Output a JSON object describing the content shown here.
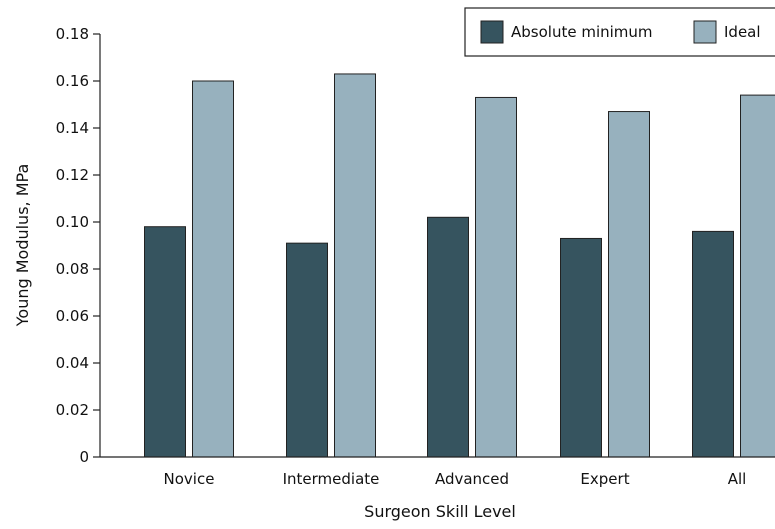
{
  "chart_data": {
    "type": "bar",
    "categories": [
      "Novice",
      "Intermediate",
      "Advanced",
      "Expert",
      "All"
    ],
    "series": [
      {
        "name": "Absolute minimum",
        "color": "#36545f",
        "values": [
          0.098,
          0.091,
          0.102,
          0.093,
          0.096
        ]
      },
      {
        "name": "Ideal",
        "color": "#97b1be",
        "values": [
          0.16,
          0.163,
          0.153,
          0.147,
          0.154
        ]
      }
    ],
    "title": "",
    "xlabel": "Surgeon Skill Level",
    "ylabel": "Young Modulus, MPa",
    "ylim": [
      0,
      0.18
    ],
    "yticks": [
      "0",
      "0.02",
      "0.04",
      "0.06",
      "0.08",
      "0.10",
      "0.12",
      "0.14",
      "0.16",
      "0.18"
    ],
    "grid": false,
    "legend_position": "top-right"
  }
}
